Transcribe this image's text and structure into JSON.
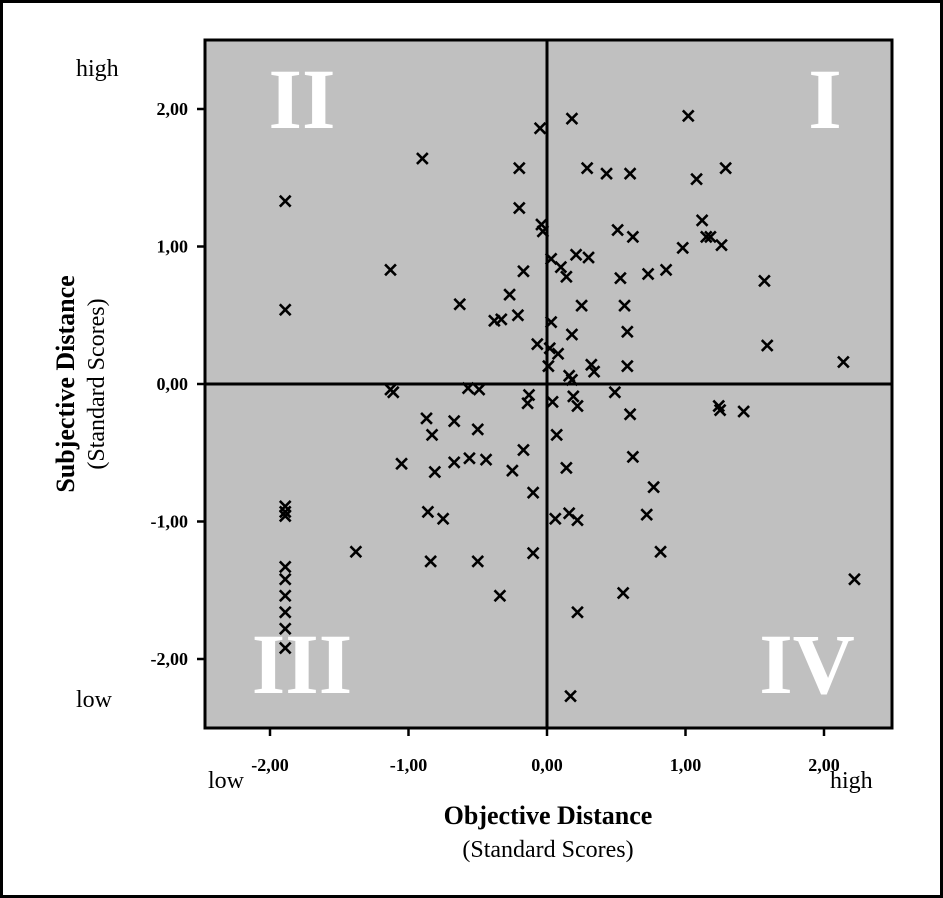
{
  "chart_data": {
    "type": "scatter",
    "xlabel": "Objective Distance",
    "xlabel_sub": "(Standard Scores)",
    "ylabel": "Subjective Distance",
    "ylabel_sub": "(Standard Scores)",
    "xlim": [
      -2.5,
      2.5
    ],
    "ylim": [
      -2.5,
      2.5
    ],
    "x_ticks": [
      -2,
      -1,
      0,
      1,
      2
    ],
    "y_ticks": [
      -2,
      -1,
      0,
      1,
      2
    ],
    "x_tick_labels": [
      "-2,00",
      "-1,00",
      "0,00",
      "1,00",
      "2,00"
    ],
    "y_tick_labels": [
      "-2,00",
      "-1,00",
      "0,00",
      "1,00",
      "2,00"
    ],
    "x_low_label": "low",
    "x_high_label": "high",
    "y_low_label": "low",
    "y_high_label": "high",
    "quadrant_labels": {
      "I": "I",
      "II": "II",
      "III": "III",
      "IV": "IV"
    },
    "plot_background": "#c0c0c0",
    "marker": "x",
    "grid": false,
    "reference_lines": {
      "x": 0,
      "y": 0
    },
    "points": [
      [
        -1.89,
        1.33
      ],
      [
        -1.89,
        0.54
      ],
      [
        -1.89,
        -0.89
      ],
      [
        -1.89,
        -0.93
      ],
      [
        -1.89,
        -0.96
      ],
      [
        -1.89,
        -1.33
      ],
      [
        -1.89,
        -1.42
      ],
      [
        -1.89,
        -1.54
      ],
      [
        -1.89,
        -1.66
      ],
      [
        -1.89,
        -1.78
      ],
      [
        -1.89,
        -1.92
      ],
      [
        -1.38,
        -1.22
      ],
      [
        -1.13,
        0.83
      ],
      [
        -1.13,
        -0.04
      ],
      [
        -1.11,
        -0.06
      ],
      [
        -1.05,
        -0.58
      ],
      [
        -0.9,
        1.64
      ],
      [
        -0.87,
        -0.25
      ],
      [
        -0.86,
        -0.93
      ],
      [
        -0.83,
        -0.37
      ],
      [
        -0.81,
        -0.64
      ],
      [
        -0.84,
        -1.29
      ],
      [
        -0.75,
        -0.98
      ],
      [
        -0.67,
        -0.27
      ],
      [
        -0.67,
        -0.57
      ],
      [
        -0.63,
        0.58
      ],
      [
        -0.57,
        -0.03
      ],
      [
        -0.56,
        -0.54
      ],
      [
        -0.5,
        -0.33
      ],
      [
        -0.5,
        -1.29
      ],
      [
        -0.49,
        -0.04
      ],
      [
        -0.44,
        -0.55
      ],
      [
        -0.38,
        0.46
      ],
      [
        -0.33,
        0.47
      ],
      [
        -0.34,
        -1.54
      ],
      [
        -0.27,
        0.65
      ],
      [
        -0.25,
        -0.63
      ],
      [
        -0.21,
        0.5
      ],
      [
        -0.2,
        1.57
      ],
      [
        -0.2,
        1.28
      ],
      [
        -0.17,
        0.82
      ],
      [
        -0.17,
        -0.48
      ],
      [
        -0.14,
        -0.14
      ],
      [
        -0.13,
        -0.08
      ],
      [
        -0.1,
        -0.79
      ],
      [
        -0.1,
        -1.23
      ],
      [
        -0.07,
        0.29
      ],
      [
        -0.05,
        1.86
      ],
      [
        -0.04,
        1.16
      ],
      [
        -0.03,
        1.11
      ],
      [
        0.01,
        0.13
      ],
      [
        0.02,
        0.26
      ],
      [
        0.03,
        0.45
      ],
      [
        0.03,
        0.91
      ],
      [
        0.04,
        -0.13
      ],
      [
        0.06,
        -0.98
      ],
      [
        0.07,
        -0.37
      ],
      [
        0.08,
        0.22
      ],
      [
        0.1,
        0.85
      ],
      [
        0.14,
        0.78
      ],
      [
        0.14,
        -0.61
      ],
      [
        0.16,
        0.06
      ],
      [
        0.16,
        -0.94
      ],
      [
        0.17,
        -2.27
      ],
      [
        0.18,
        1.93
      ],
      [
        0.18,
        0.36
      ],
      [
        0.18,
        0.03
      ],
      [
        0.19,
        -0.09
      ],
      [
        0.21,
        0.94
      ],
      [
        0.22,
        -0.16
      ],
      [
        0.22,
        -0.99
      ],
      [
        0.22,
        -1.66
      ],
      [
        0.25,
        0.57
      ],
      [
        0.29,
        1.57
      ],
      [
        0.3,
        0.92
      ],
      [
        0.32,
        0.14
      ],
      [
        0.34,
        0.09
      ],
      [
        0.43,
        1.53
      ],
      [
        0.49,
        -0.06
      ],
      [
        0.51,
        1.12
      ],
      [
        0.53,
        0.77
      ],
      [
        0.56,
        0.57
      ],
      [
        0.55,
        -1.52
      ],
      [
        0.58,
        0.38
      ],
      [
        0.58,
        0.13
      ],
      [
        0.6,
        1.53
      ],
      [
        0.6,
        -0.22
      ],
      [
        0.62,
        1.07
      ],
      [
        0.62,
        -0.53
      ],
      [
        0.73,
        0.8
      ],
      [
        0.72,
        -0.95
      ],
      [
        0.77,
        -0.75
      ],
      [
        0.82,
        -1.22
      ],
      [
        0.86,
        0.83
      ],
      [
        0.98,
        0.99
      ],
      [
        1.02,
        1.95
      ],
      [
        1.08,
        1.49
      ],
      [
        1.12,
        1.19
      ],
      [
        1.15,
        1.07
      ],
      [
        1.18,
        1.07
      ],
      [
        1.24,
        -0.16
      ],
      [
        1.25,
        -0.19
      ],
      [
        1.26,
        1.01
      ],
      [
        1.29,
        1.57
      ],
      [
        1.42,
        -0.2
      ],
      [
        1.57,
        0.75
      ],
      [
        1.59,
        0.28
      ],
      [
        2.14,
        0.16
      ],
      [
        2.22,
        -1.42
      ]
    ]
  }
}
